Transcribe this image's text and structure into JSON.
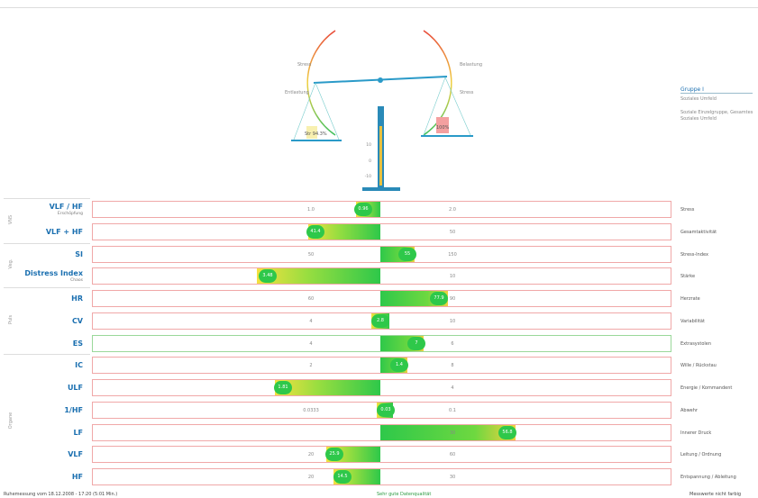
{
  "scale": {
    "left_arc_top": "Stress",
    "left_arc_bottom": "Entlastung",
    "right_arc_top": "Belastung",
    "right_arc_bottom": "Stress",
    "left_pan": "Str 94.3%",
    "right_pan": "100%",
    "pillar_ticks": [
      "10",
      "0",
      "-10"
    ]
  },
  "legend": {
    "title": "Gruppe I",
    "subtitle": "Soziales Umfeld",
    "lines": [
      "Soziale Einzelgruppe, Gesamtes",
      "Soziales Umfeld"
    ]
  },
  "groups": [
    {
      "label": "VNS",
      "rows": [
        {
          "name": "VLF / HF",
          "sub": "Erschöpfung",
          "left_tick": "1.0",
          "right_tick": "2.0",
          "value": "0.96",
          "right_label": "Stress"
        },
        {
          "name": "VLF + HF",
          "sub": "",
          "left_tick": "",
          "right_tick": "50",
          "value": "41.4",
          "right_label": "Gesamtaktivität"
        }
      ]
    },
    {
      "label": "Veg.",
      "rows": [
        {
          "name": "SI",
          "sub": "",
          "left_tick": "50",
          "right_tick": "150",
          "value": "55",
          "right_label": "Stress-Index"
        },
        {
          "name": "Distress Index",
          "sub": "Chaos",
          "left_tick": "",
          "right_tick": "10",
          "value": "3.48",
          "right_label": "Stärke"
        }
      ]
    },
    {
      "label": "Puls",
      "rows": [
        {
          "name": "HR",
          "sub": "",
          "left_tick": "60",
          "right_tick": "90",
          "value": "77.9",
          "right_label": "Herzrate"
        },
        {
          "name": "CV",
          "sub": "",
          "left_tick": "4",
          "right_tick": "10",
          "value": "2.8",
          "right_label": "Variabilität"
        },
        {
          "name": "ES",
          "sub": "",
          "left_tick": "4",
          "right_tick": "6",
          "value": "7",
          "right_label": "Extrasystolen"
        }
      ]
    },
    {
      "label": "Organe",
      "rows": [
        {
          "name": "IC",
          "sub": "",
          "left_tick": "2",
          "right_tick": "8",
          "value": "1.4",
          "right_label": "Wille / Rückstau"
        },
        {
          "name": "ULF",
          "sub": "",
          "left_tick": "",
          "right_tick": "4",
          "value": "1.81",
          "right_label": "Energie / Kommandent"
        },
        {
          "name": "1/HF",
          "sub": "",
          "left_tick": "0.0333",
          "right_tick": "0.1",
          "value": "0.03",
          "right_label": "Abwehr"
        },
        {
          "name": "LF",
          "sub": "",
          "left_tick": "",
          "right_tick": "30",
          "value": "56.8",
          "right_label": "Innerer Druck"
        },
        {
          "name": "VLF",
          "sub": "",
          "left_tick": "20",
          "right_tick": "60",
          "value": "25.9",
          "right_label": "Leitung / Ordnung"
        },
        {
          "name": "HF",
          "sub": "",
          "left_tick": "20",
          "right_tick": "30",
          "value": "14.5",
          "right_label": "Entspannung / Ableitung"
        }
      ]
    }
  ],
  "footer": {
    "left": "Ruhemessung vom 18.12.2008 - 17:20 (5:01 Min.)",
    "center": "Sehr gute Datenqualität",
    "right": "Messwerte nicht farbig"
  }
}
